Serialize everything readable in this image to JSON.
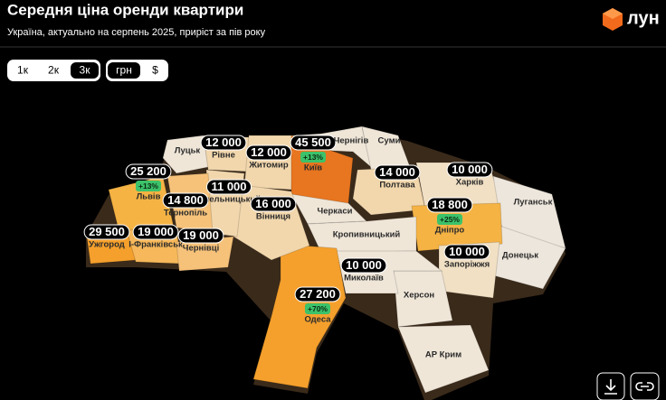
{
  "header": {
    "title": "Середня ціна оренди квартири",
    "subtitle": "Україна, актуально на серпень 2025, приріст за пів року",
    "logo": "лун"
  },
  "controls": {
    "rooms": [
      {
        "label": "1к",
        "selected": false
      },
      {
        "label": "2к",
        "selected": false
      },
      {
        "label": "3к",
        "selected": true
      }
    ],
    "currency": [
      {
        "label": "грн",
        "selected": true
      },
      {
        "label": "$",
        "selected": false
      }
    ]
  },
  "regions": [
    {
      "name": "Рівне",
      "price": "12 000"
    },
    {
      "name": "Житомир",
      "price": "12 000"
    },
    {
      "name": "Київ",
      "price": "45 500",
      "growth": "+13%"
    },
    {
      "name": "Львів",
      "price": "25 200",
      "growth": "+13%"
    },
    {
      "name": "Хмельницький",
      "price": "11 000"
    },
    {
      "name": "Тернопіль",
      "price": "14 800"
    },
    {
      "name": "Вінниця",
      "price": "16 000"
    },
    {
      "name": "Полтава",
      "price": "14 000"
    },
    {
      "name": "Харків",
      "price": "10 000"
    },
    {
      "name": "Дніпро",
      "price": "18 800",
      "growth": "+25%"
    },
    {
      "name": "Ужгород",
      "price": "29 500"
    },
    {
      "name": "І-Франківськ",
      "price": "19 000"
    },
    {
      "name": "Чернівці",
      "price": "19 000"
    },
    {
      "name": "Запоріжжя",
      "price": "10 000"
    },
    {
      "name": "Миколаїв",
      "price": "10 000"
    },
    {
      "name": "Одеса",
      "price": "27 200",
      "growth": "+70%"
    },
    {
      "name": "Луцьк"
    },
    {
      "name": "Чернігів"
    },
    {
      "name": "Суми"
    },
    {
      "name": "Черкаси"
    },
    {
      "name": "Кропивницький"
    },
    {
      "name": "Луганськ"
    },
    {
      "name": "Донецьк"
    },
    {
      "name": "Херсон"
    },
    {
      "name": "АР Крим"
    }
  ]
}
